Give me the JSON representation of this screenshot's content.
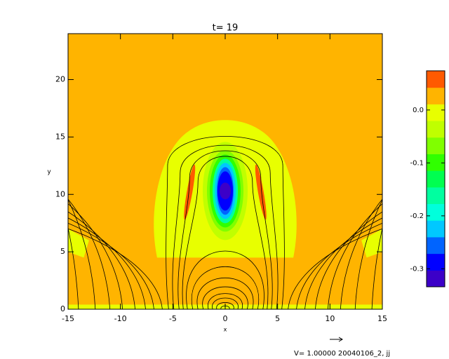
{
  "chart_data": {
    "type": "contour",
    "title": "t= 19",
    "xlabel": "x",
    "ylabel": "y",
    "xlim": [
      -15,
      15
    ],
    "ylim": [
      0,
      24
    ],
    "xticks": [
      -15,
      -10,
      -5,
      0,
      5,
      10,
      15
    ],
    "yticks": [
      0,
      5,
      10,
      15,
      20
    ],
    "background_color": "#ffb400",
    "colorbar": {
      "lim": [
        -0.334,
        0.074
      ],
      "ticks": [
        {
          "value": 0,
          "label": "0.0"
        },
        -0.1,
        -0.2,
        -0.3
      ],
      "colors": [
        "#3c00c8",
        "#0000ff",
        "#0064ff",
        "#00c8ff",
        "#00ffdc",
        "#00ffa0",
        "#00ff50",
        "#30ff00",
        "#80ff00",
        "#c0ff00",
        "#e8ff00",
        "#ffb400",
        "#ff5a00"
      ]
    },
    "annotation": "V= 1.00000 20040106_2, jj"
  }
}
